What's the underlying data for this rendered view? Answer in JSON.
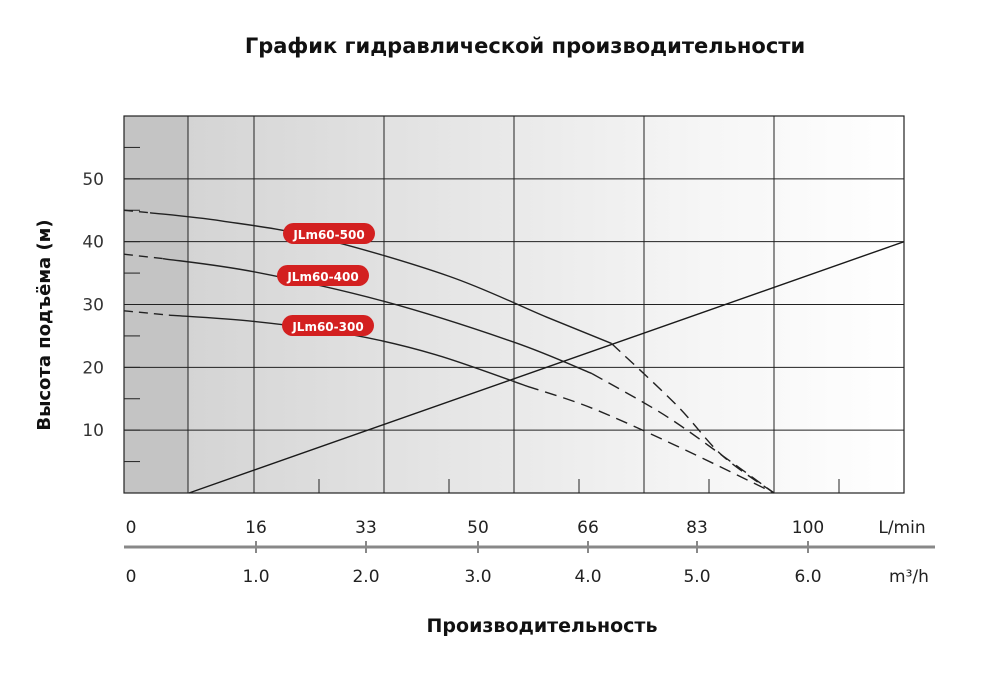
{
  "chart_data": {
    "type": "line",
    "title": "График гидравлической производительности",
    "ylabel": "Высота подъёма (м)",
    "xlabel": "Производительность",
    "ylim": [
      0,
      60
    ],
    "xlim_lmin": [
      0,
      120
    ],
    "grid": true,
    "y_ticks": [
      "10",
      "20",
      "30",
      "40",
      "50"
    ],
    "x_axis_lmin": {
      "unit": "L/min",
      "ticks": [
        "0",
        "16",
        "33",
        "50",
        "66",
        "83",
        "100"
      ]
    },
    "x_axis_m3h": {
      "unit": "m³/h",
      "ticks": [
        "0",
        "1.0",
        "2.0",
        "3.0",
        "4.0",
        "5.0",
        "6.0"
      ]
    },
    "series": [
      {
        "name": "JLm60-500",
        "color": "#222222",
        "label_color": "#d32020",
        "dashed": [
          [
            0,
            45
          ],
          [
            4,
            44.6
          ]
        ],
        "solid": [
          [
            4,
            44.6
          ],
          [
            15,
            43.3
          ],
          [
            30,
            40.6
          ],
          [
            50,
            34.5
          ],
          [
            65,
            28
          ],
          [
            75,
            23.8
          ]
        ],
        "dashed_tail": [
          [
            75,
            23.8
          ],
          [
            85,
            14
          ],
          [
            92,
            6
          ],
          [
            100,
            0
          ]
        ]
      },
      {
        "name": "JLm60-400",
        "color": "#222222",
        "label_color": "#d32020",
        "dashed": [
          [
            0,
            38
          ],
          [
            6,
            37.3
          ]
        ],
        "solid": [
          [
            6,
            37.3
          ],
          [
            20,
            35.2
          ],
          [
            40,
            30.5
          ],
          [
            60,
            24
          ],
          [
            72,
            19
          ]
        ],
        "dashed_tail": [
          [
            72,
            19
          ],
          [
            83,
            12.5
          ],
          [
            92,
            6
          ],
          [
            100,
            0
          ]
        ]
      },
      {
        "name": "JLm60-300",
        "color": "#222222",
        "label_color": "#d32020",
        "dashed": [
          [
            0,
            29
          ],
          [
            7,
            28.3
          ]
        ],
        "solid": [
          [
            7,
            28.3
          ],
          [
            20,
            27.3
          ],
          [
            35,
            25.2
          ],
          [
            48,
            22
          ],
          [
            62,
            17
          ]
        ],
        "dashed_tail": [
          [
            62,
            17
          ],
          [
            72,
            13.5
          ],
          [
            85,
            7.5
          ],
          [
            100,
            0
          ]
        ]
      }
    ],
    "system_line": {
      "points": [
        [
          10,
          0
        ],
        [
          120,
          40
        ]
      ],
      "color": "#222222"
    }
  }
}
